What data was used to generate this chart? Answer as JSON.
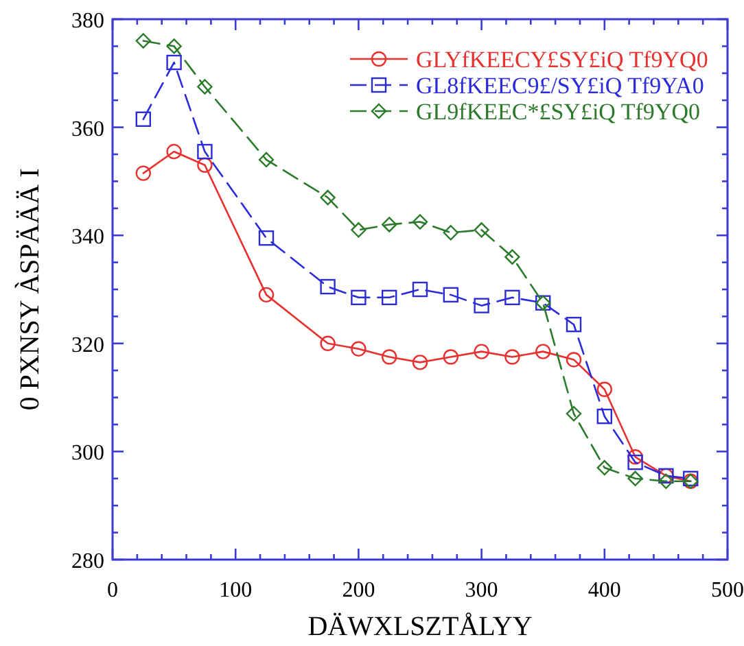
{
  "chart_data": {
    "type": "line",
    "xlabel": "DÄWXLSZTÅLYY",
    "ylabel": "0 PXNSY ÀSPÄÄÄ I",
    "x": [
      25,
      50,
      75,
      125,
      175,
      200,
      225,
      250,
      275,
      300,
      325,
      350,
      375,
      400,
      425,
      450,
      470
    ],
    "series": [
      {
        "name": "GLYfKEECY£SY£iQ Tf9YQ0",
        "color": "#e8312f",
        "marker": "circle",
        "line_style": "solid",
        "values": [
          351.5,
          355.5,
          353,
          329,
          320,
          319,
          317.5,
          316.5,
          317.5,
          318.5,
          317.5,
          318.5,
          317,
          311.5,
          299,
          295.5,
          294.5
        ]
      },
      {
        "name": "GL8fKEEC9£/SY£iQ Tf9YA0",
        "color": "#2b2bd9",
        "marker": "square",
        "line_style": "dashed",
        "values": [
          361.5,
          372,
          355.5,
          339.5,
          330.5,
          328.5,
          328.5,
          330,
          329,
          327,
          328.5,
          327.5,
          323.5,
          306.5,
          298,
          295.5,
          295
        ]
      },
      {
        "name": "GL9fKEEC*£SY£iQ Tf9YQ0",
        "color": "#2a7a2a",
        "marker": "diamond",
        "line_style": "dashed",
        "values": [
          376,
          375,
          367.5,
          354,
          347,
          341,
          342,
          342.5,
          340.5,
          341,
          336,
          327.5,
          307,
          297,
          295,
          294.5,
          294.5
        ]
      }
    ],
    "xlim": [
      0,
      500
    ],
    "ylim": [
      280,
      380
    ],
    "xticks": [
      0,
      {
        "value": 20,
        "label": null
      },
      {
        "value": 40,
        "label": null
      },
      {
        "value": 60,
        "label": null
      },
      {
        "value": 80,
        "label": null
      },
      100,
      {
        "value": 120,
        "label": null
      },
      {
        "value": 140,
        "label": null
      },
      {
        "value": 160,
        "label": null
      },
      {
        "value": 180,
        "label": null
      },
      200,
      {
        "value": 220,
        "label": null
      },
      {
        "value": 240,
        "label": null
      },
      {
        "value": 260,
        "label": null
      },
      {
        "value": 280,
        "label": null
      },
      300,
      {
        "value": 320,
        "label": null
      },
      {
        "value": 340,
        "label": null
      },
      {
        "value": 360,
        "label": null
      },
      {
        "value": 380,
        "label": null
      },
      400,
      {
        "value": 420,
        "label": null
      },
      {
        "value": 440,
        "label": null
      },
      {
        "value": 460,
        "label": null
      },
      {
        "value": 480,
        "label": null
      },
      500
    ],
    "yticks": [
      280,
      {
        "value": 285,
        "label": null
      },
      {
        "value": 290,
        "label": null
      },
      {
        "value": 295,
        "label": null
      },
      300,
      {
        "value": 305,
        "label": null
      },
      {
        "value": 310,
        "label": null
      },
      {
        "value": 315,
        "label": null
      },
      320,
      {
        "value": 325,
        "label": null
      },
      {
        "value": 330,
        "label": null
      },
      {
        "value": 335,
        "label": null
      },
      340,
      {
        "value": 345,
        "label": null
      },
      {
        "value": 350,
        "label": null
      },
      {
        "value": 355,
        "label": null
      },
      360,
      {
        "value": 365,
        "label": null
      },
      {
        "value": 370,
        "label": null
      },
      {
        "value": 375,
        "label": null
      },
      380
    ],
    "grid": false,
    "legend": "top right"
  }
}
